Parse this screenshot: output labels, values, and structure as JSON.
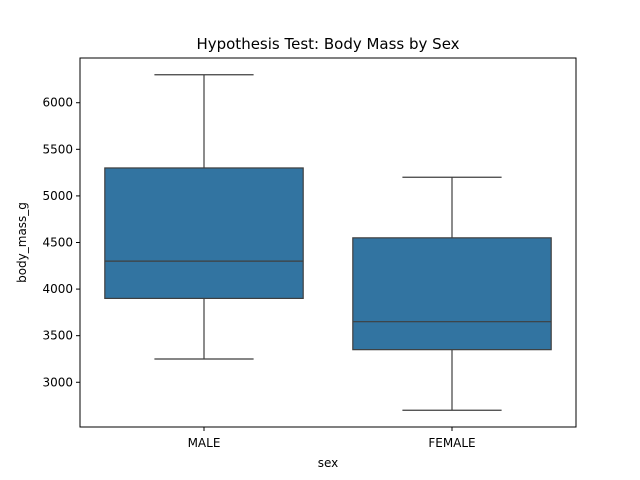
{
  "chart_data": {
    "type": "box",
    "title": "Hypothesis Test: Body Mass by Sex",
    "xlabel": "sex",
    "ylabel": "body_mass_g",
    "categories": [
      "MALE",
      "FEMALE"
    ],
    "boxes": [
      {
        "category": "MALE",
        "whisker_low": 3250,
        "q1": 3900,
        "median": 4300,
        "q3": 5300,
        "whisker_high": 6300
      },
      {
        "category": "FEMALE",
        "whisker_low": 2700,
        "q1": 3350,
        "median": 3650,
        "q3": 4550,
        "whisker_high": 5200
      }
    ],
    "yticks": [
      3000,
      3500,
      4000,
      4500,
      5000,
      5500,
      6000
    ],
    "ylim": [
      2520,
      6480
    ],
    "grid": false,
    "colors": {
      "box_fill": "#3274a1",
      "line": "#3f3f3f"
    }
  }
}
